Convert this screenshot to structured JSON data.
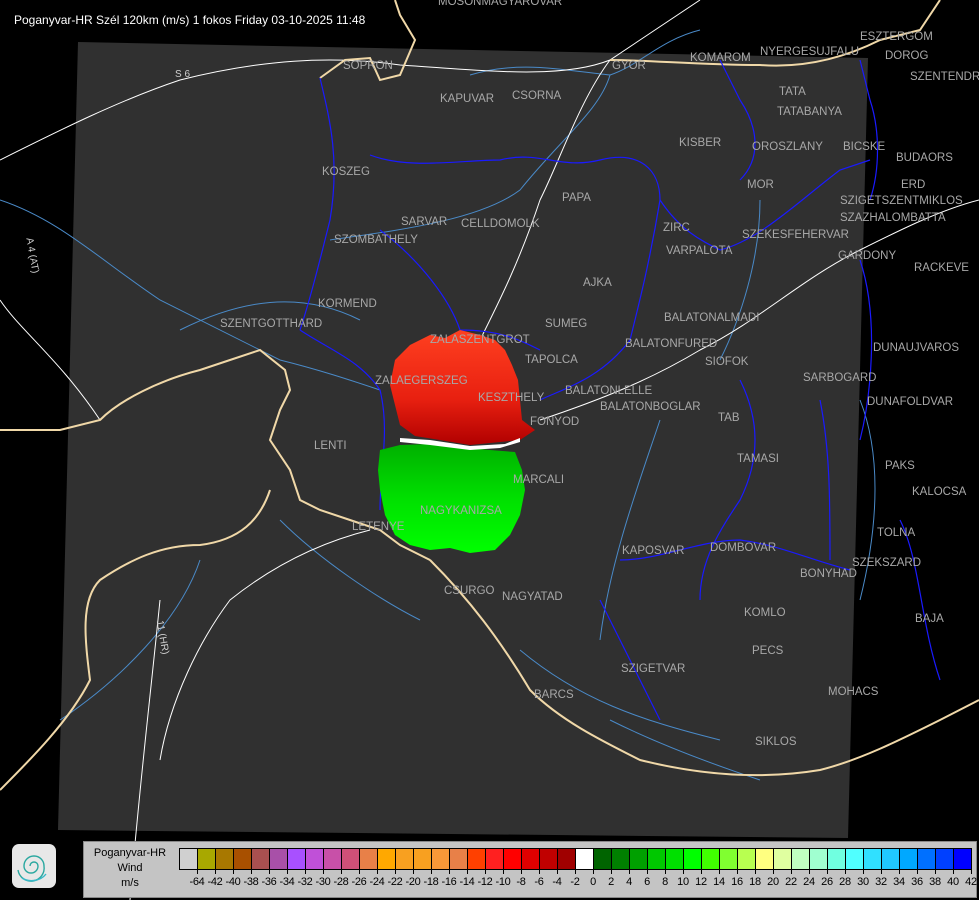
{
  "title": "Poganyvar-HR Szél 120km (m/s) 1 fokos Friday 03-10-2025 11:48",
  "map": {
    "cities": [
      "MOSONMAGYAROVAR",
      "SOPRON",
      "GYOR",
      "KOMAROM",
      "ESZTERGOM",
      "NYERGESUJFALU",
      "DOROG",
      "SZENTENDRE",
      "KAPUVAR",
      "CSORNA",
      "TATA",
      "TATABANYA",
      "KISBER",
      "OROSZLANY",
      "BICSKE",
      "BUDAORS",
      "KOSZEG",
      "MOR",
      "ERD",
      "SZIGETSZENTMIKLOS",
      "SZAZHALOMBATTA",
      "PAPA",
      "SARVAR",
      "CELLDOMOLK",
      "SZOMBATHELY",
      "ZIRC",
      "VARPALOTA",
      "SZEKESFEHERVAR",
      "GARDONY",
      "RACKEVE",
      "AJKA",
      "KORMEND",
      "SZENTGOTTHARD",
      "BALATONALMADI",
      "SUMEG",
      "ZALASZENTGROT",
      "BALATONFURED",
      "SIOFOK",
      "DUNAUJVAROS",
      "TAPOLCA",
      "SARBOGARD",
      "ZALAEGERSZEG",
      "KESZTHELY",
      "BALATONLELLE",
      "BALATONBOGLAR",
      "FONYOD",
      "DUNAFOLDVAR",
      "TAB",
      "LENTI",
      "TAMASI",
      "PAKS",
      "MARCALI",
      "KALOCSA",
      "LETENYE",
      "NAGYKANIZSA",
      "TOLNA",
      "KAPOSVAR",
      "DOMBOVAR",
      "SZEKSZARD",
      "BONYHAD",
      "CSURGO",
      "NAGYATAD",
      "KOMLO",
      "BAJA",
      "PECS",
      "SZIGETVAR",
      "MOHACS",
      "BARCS",
      "SIKLOS"
    ],
    "roads": [
      "S 6",
      "A 4 (AT)",
      "11 (HR)"
    ],
    "colors": {
      "background": "#000000",
      "coverage": "#303030",
      "border": "#1a1aff",
      "river": "#4a8ac8",
      "austria_border": "#f0d8a8",
      "roads": "#ffffff",
      "city_label": "#a8a8a8",
      "approaching": "#00e000",
      "receding": "#ff2000"
    }
  },
  "legend": {
    "title_lines": [
      "Poganyvar-HR",
      "Wind",
      "m/s"
    ],
    "labels": [
      "-64",
      "-42",
      "-40",
      "-38",
      "-36",
      "-34",
      "-32",
      "-30",
      "-28",
      "-26",
      "-24",
      "-22",
      "-20",
      "-18",
      "-16",
      "-14",
      "-12",
      "-10",
      "-8",
      "-6",
      "-4",
      "-2",
      "0",
      "2",
      "4",
      "6",
      "8",
      "10",
      "12",
      "14",
      "16",
      "18",
      "20",
      "22",
      "24",
      "26",
      "28",
      "30",
      "32",
      "34",
      "36",
      "38",
      "40",
      "42"
    ],
    "colors": [
      "#d0d0d0",
      "#a8a800",
      "#a87800",
      "#a85000",
      "#a85050",
      "#a850a8",
      "#a850ff",
      "#c050d8",
      "#c850a8",
      "#d05078",
      "#e88048",
      "#ffa800",
      "#f8a020",
      "#f8a020",
      "#f89838",
      "#e88048",
      "#ff4000",
      "#ff2020",
      "#ff0000",
      "#e00000",
      "#c00000",
      "#a00000",
      "#ffffff",
      "#006400",
      "#008000",
      "#00a000",
      "#00c800",
      "#00e000",
      "#00ff00",
      "#40ff00",
      "#80ff30",
      "#b8ff50",
      "#ffff80",
      "#e0ffa0",
      "#c0ffc0",
      "#a0ffd0",
      "#70ffe0",
      "#50ffff",
      "#30e0ff",
      "#20c8ff",
      "#00a8ff",
      "#0070ff",
      "#0040ff",
      "#0000ff"
    ]
  }
}
